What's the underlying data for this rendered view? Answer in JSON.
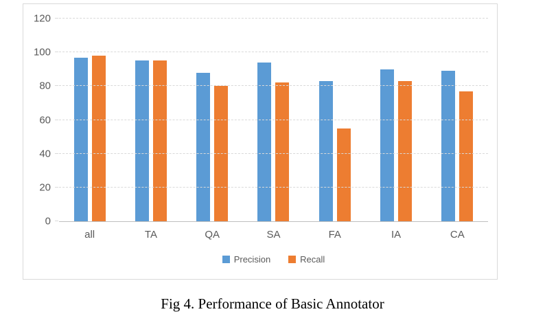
{
  "figure": {
    "caption": "Fig 4. Performance of Basic Annotator"
  },
  "chart_data": {
    "type": "bar",
    "title": "",
    "xlabel": "",
    "ylabel": "",
    "categories": [
      "all",
      "TA",
      "QA",
      "SA",
      "FA",
      "IA",
      "CA"
    ],
    "series": [
      {
        "name": "Precision",
        "color": "#5B9BD5",
        "values": [
          97,
          95,
          88,
          94,
          83,
          90,
          89
        ]
      },
      {
        "name": "Recall",
        "color": "#ED7D31",
        "values": [
          98,
          95,
          80,
          82,
          55,
          83,
          77
        ]
      }
    ],
    "ylim": [
      0,
      120
    ],
    "yticks": [
      0,
      20,
      40,
      60,
      80,
      100,
      120
    ],
    "grid": true,
    "legend_position": "bottom"
  },
  "colors": {
    "precision": "#5B9BD5",
    "recall": "#ED7D31",
    "axis_text": "#595959",
    "gridline": "#D9D9D9",
    "axis_line": "#BFBFBF",
    "chart_border": "#D9D9D9"
  }
}
